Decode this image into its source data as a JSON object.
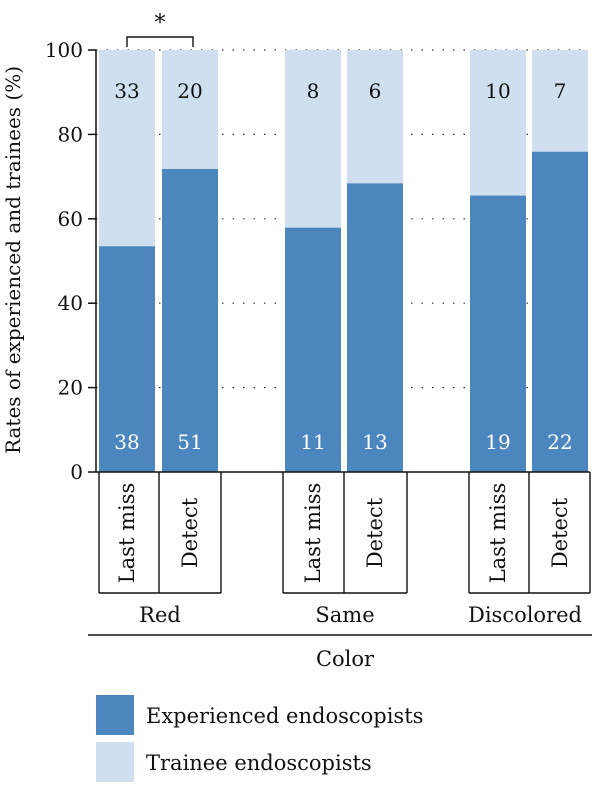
{
  "chart_data": {
    "type": "bar",
    "stacked": true,
    "ylabel": "Rates of experienced and trainees (%)",
    "xlabel": "Color",
    "ylim": [
      0,
      100
    ],
    "yticks": [
      "0",
      "20",
      "40",
      "60",
      "80",
      "100"
    ],
    "grid": "dotted horizontal lines between groups",
    "groups": [
      {
        "name": "Red",
        "bars": [
          {
            "label": "Last miss",
            "experienced_pct": 53.5,
            "experienced_n": "38",
            "trainee_n": "33"
          },
          {
            "label": "Detect",
            "experienced_pct": 71.8,
            "experienced_n": "51",
            "trainee_n": "20"
          }
        ]
      },
      {
        "name": "Same",
        "bars": [
          {
            "label": "Last miss",
            "experienced_pct": 57.9,
            "experienced_n": "11",
            "trainee_n": "8"
          },
          {
            "label": "Detect",
            "experienced_pct": 68.4,
            "experienced_n": "13",
            "trainee_n": "6"
          }
        ]
      },
      {
        "name": "Discolored",
        "bars": [
          {
            "label": "Last miss",
            "experienced_pct": 65.5,
            "experienced_n": "19",
            "trainee_n": "10"
          },
          {
            "label": "Detect",
            "experienced_pct": 75.9,
            "experienced_n": "22",
            "trainee_n": "7"
          }
        ]
      }
    ],
    "series": [
      {
        "name": "Experienced endoscopists",
        "color": "#4b86bf"
      },
      {
        "name": "Trainee endoscopists",
        "color": "#cfdfef"
      }
    ],
    "annotation": "*",
    "legend_position": "bottom-left"
  }
}
